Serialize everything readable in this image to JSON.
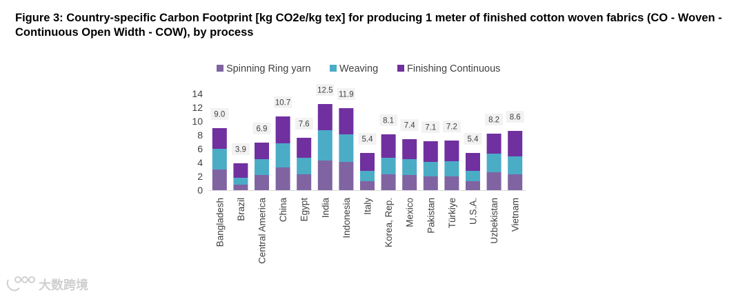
{
  "figure_title": "Figure 3: Country-specific Carbon Footprint [kg CO2e/kg tex] for producing 1 meter of finished cotton woven fabrics (CO - Woven - Continuous Open Width - COW), by process",
  "watermark": {
    "text": "大数跨境"
  },
  "colors": {
    "spinning": "#8064a2",
    "weaving": "#4bacc6",
    "finishing": "#7030a0",
    "label_bg": "#f2f2f2",
    "axis": "#d9d9d9"
  },
  "chart_data": {
    "type": "bar",
    "stacked": true,
    "title": "",
    "xlabel": "",
    "ylabel": "",
    "ylim": [
      0,
      14
    ],
    "yticks": [
      0,
      2,
      4,
      6,
      8,
      10,
      12,
      14
    ],
    "legend_position": "top",
    "categories": [
      "Bangladesh",
      "Brazil",
      "Central America",
      "China",
      "Egypt",
      "India",
      "Indonesia",
      "Italy",
      "Korea, Rep.",
      "Mexico",
      "Pakistan",
      "Türkiye",
      "U.S.A.",
      "Uzbekistan",
      "Vietnam"
    ],
    "series": [
      {
        "name": "Spinning Ring yarn",
        "key": "spinning",
        "values": [
          3.0,
          0.8,
          2.2,
          3.3,
          2.3,
          4.3,
          4.1,
          1.3,
          2.3,
          2.2,
          2.0,
          2.0,
          1.3,
          2.6,
          2.3
        ]
      },
      {
        "name": "Weaving",
        "key": "weaving",
        "values": [
          3.0,
          1.0,
          2.3,
          3.5,
          2.4,
          4.4,
          4.0,
          1.5,
          2.4,
          2.3,
          2.1,
          2.2,
          1.5,
          2.7,
          2.6
        ]
      },
      {
        "name": "Finishing Continuous",
        "key": "finishing",
        "values": [
          3.0,
          2.1,
          2.4,
          3.9,
          2.9,
          3.8,
          3.8,
          2.6,
          3.4,
          2.9,
          3.0,
          3.0,
          2.6,
          2.9,
          3.7
        ]
      }
    ],
    "totals": [
      "9.0",
      "3.9",
      "6.9",
      "10.7",
      "7.6",
      "12.5",
      "11.9",
      "5.4",
      "8.1",
      "7.4",
      "7.1",
      "7.2",
      "5.4",
      "8.2",
      "8.6"
    ]
  }
}
